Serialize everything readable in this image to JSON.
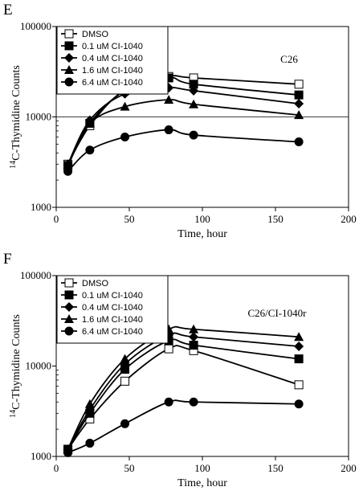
{
  "chart_data": [
    {
      "panel": "E",
      "type": "line",
      "annotation": "C26",
      "xlabel": "Time, hour",
      "ylabel_super": "14",
      "ylabel": "C-Thymidine Counts",
      "xlim": [
        0,
        200
      ],
      "ylim": [
        1000,
        100000
      ],
      "yscale": "log",
      "xticks": [
        0,
        50,
        100,
        150,
        200
      ],
      "yticks": [
        1000,
        10000,
        100000
      ],
      "yticklabels": [
        "1000",
        "10000",
        "100000"
      ],
      "reference_line_y": 10000,
      "legend_position": "top-left",
      "x": [
        8,
        23,
        47,
        77,
        94,
        166
      ],
      "series": [
        {
          "name": "DMSO",
          "marker": "open-square",
          "values": [
            3000,
            8000,
            20000,
            28000,
            27000,
            23000
          ]
        },
        {
          "name": "0.1 uM CI-1040",
          "marker": "filled-square",
          "values": [
            2900,
            8500,
            19500,
            27000,
            23000,
            17500
          ]
        },
        {
          "name": "0.4 uM CI-1040",
          "marker": "filled-diamond",
          "values": [
            3000,
            9200,
            18000,
            21000,
            19500,
            14000
          ]
        },
        {
          "name": "1.6 uM CI-1040",
          "marker": "filled-triangle",
          "values": [
            2900,
            8500,
            13000,
            15500,
            13800,
            10500
          ]
        },
        {
          "name": "6.4 uM CI-1040",
          "marker": "filled-circle",
          "values": [
            2500,
            4300,
            6000,
            7200,
            6300,
            5300
          ]
        }
      ]
    },
    {
      "panel": "F",
      "type": "line",
      "annotation": "C26/CI-1040r",
      "xlabel": "Time, hour",
      "ylabel_super": "14",
      "ylabel": "C-Thymidine Counts",
      "xlim": [
        0,
        200
      ],
      "ylim": [
        1000,
        100000
      ],
      "yscale": "log",
      "xticks": [
        0,
        50,
        100,
        150,
        200
      ],
      "yticks": [
        1000,
        10000,
        100000
      ],
      "yticklabels": [
        "1000",
        "10000",
        "100000"
      ],
      "legend_position": "top-left",
      "x": [
        8,
        23,
        47,
        77,
        94,
        166
      ],
      "series": [
        {
          "name": "DMSO",
          "marker": "open-square",
          "values": [
            1200,
            2600,
            6800,
            15500,
            14800,
            6200
          ]
        },
        {
          "name": "0.1 uM CI-1040",
          "marker": "filled-square",
          "values": [
            1200,
            3000,
            9200,
            19000,
            17000,
            12000
          ]
        },
        {
          "name": "0.4 uM CI-1040",
          "marker": "filled-diamond",
          "values": [
            1200,
            3300,
            10500,
            22000,
            21000,
            16500
          ]
        },
        {
          "name": "1.6 uM CI-1040",
          "marker": "filled-triangle",
          "values": [
            1200,
            3800,
            12000,
            25500,
            25500,
            21000
          ]
        },
        {
          "name": "6.4 uM CI-1040",
          "marker": "filled-circle",
          "values": [
            1100,
            1400,
            2300,
            4000,
            4000,
            3800
          ]
        }
      ]
    }
  ]
}
